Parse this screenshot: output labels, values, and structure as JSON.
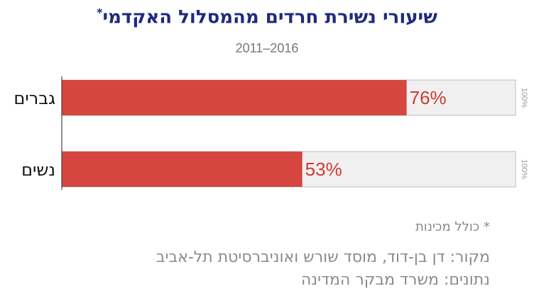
{
  "header": {
    "title": "שיעורי נשירת חרדים מהמסלול האקדמי",
    "title_mark": "*",
    "subtitle": "2011–2016"
  },
  "chart_data": {
    "type": "bar",
    "orientation": "horizontal",
    "categories": [
      "גברים",
      "נשים"
    ],
    "values": [
      76,
      53
    ],
    "value_labels": [
      "76%",
      "53%"
    ],
    "max_label": "100%",
    "xlim": [
      0,
      100
    ],
    "bar_color": "#d4463f",
    "track_color": "#f0f0f0",
    "label_color": "#cf3a33"
  },
  "footer": {
    "footnote": "* כולל מכינות",
    "source_line1": "מקור: דן בן-דוד, מוסד שורש ואוניברסיטת תל-אביב",
    "source_line2": "נתונים: משרד מבקר המדינה"
  }
}
